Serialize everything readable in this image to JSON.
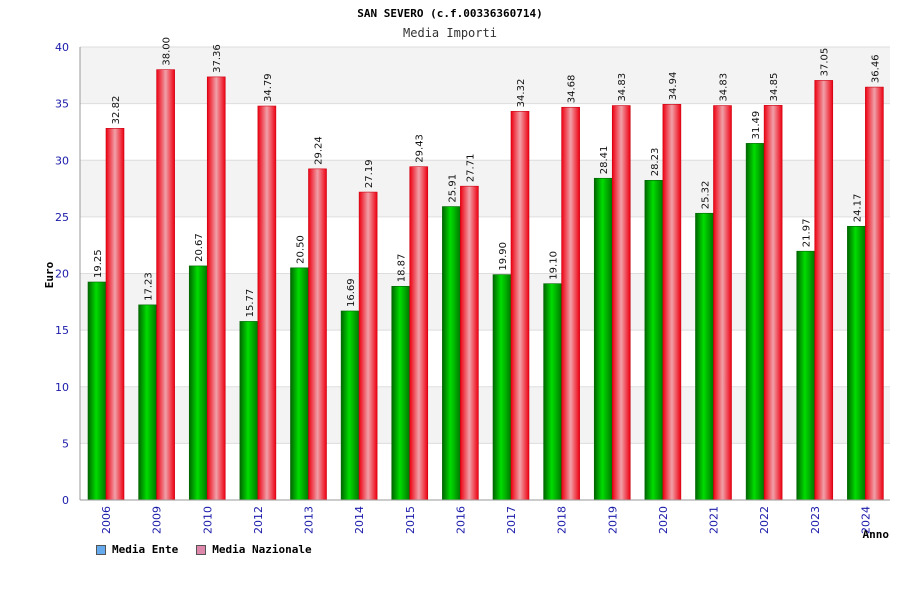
{
  "chart_data": {
    "type": "bar",
    "title": "SAN SEVERO (c.f.00336360714)",
    "subtitle": "Media Importi",
    "xlabel": "Anno",
    "ylabel": "Euro",
    "ylim": [
      0,
      40
    ],
    "yticks": [
      "0",
      "5",
      "10",
      "15",
      "20",
      "25",
      "30",
      "35",
      "40"
    ],
    "categories": [
      "2006",
      "2009",
      "2010",
      "2012",
      "2013",
      "2014",
      "2015",
      "2016",
      "2017",
      "2018",
      "2019",
      "2020",
      "2021",
      "2022",
      "2023",
      "2024"
    ],
    "series": [
      {
        "name": "Media Ente",
        "color": "#00bb00",
        "values": [
          19.25,
          17.23,
          20.67,
          15.77,
          20.5,
          16.69,
          18.87,
          25.91,
          19.9,
          19.1,
          28.41,
          28.23,
          25.32,
          31.49,
          21.97,
          24.17
        ],
        "labels": [
          "19.25",
          "17.23",
          "20.67",
          "15.77",
          "20.50",
          "16.69",
          "18.87",
          "25.91",
          "19.90",
          "19.10",
          "28.41",
          "28.23",
          "25.32",
          "31.49",
          "21.97",
          "24.17"
        ]
      },
      {
        "name": "Media Nazionale",
        "color": "#ee1122",
        "values": [
          32.82,
          38.0,
          37.36,
          34.79,
          29.24,
          27.19,
          29.43,
          27.71,
          34.32,
          34.68,
          34.83,
          34.94,
          34.83,
          34.85,
          37.05,
          36.46
        ],
        "labels": [
          "32.82",
          "38.00",
          "37.36",
          "34.79",
          "29.24",
          "27.19",
          "29.43",
          "27.71",
          "34.32",
          "34.68",
          "34.83",
          "34.94",
          "34.83",
          "34.85",
          "37.05",
          "36.46"
        ]
      }
    ],
    "legend": [
      {
        "label": "Media Ente",
        "color": "#66aaee"
      },
      {
        "label": "Media Nazionale",
        "color": "#dd88aa"
      }
    ]
  }
}
